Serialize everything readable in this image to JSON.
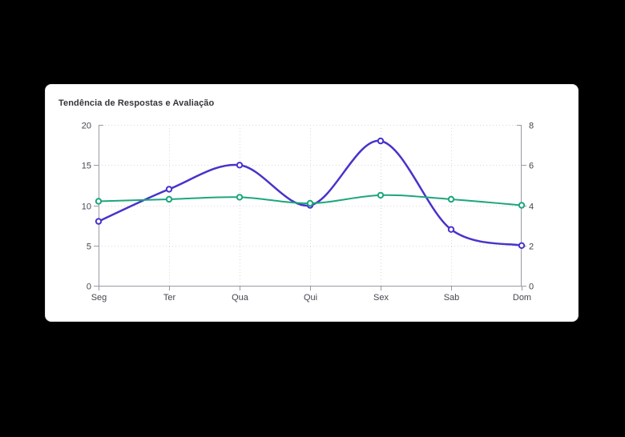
{
  "chart_data": {
    "type": "line",
    "title": "Tendência de Respostas e Avaliação",
    "categories": [
      "Seg",
      "Ter",
      "Qua",
      "Qui",
      "Sex",
      "Sab",
      "Dom"
    ],
    "series": [
      {
        "axis": "left",
        "color": "#4733cb",
        "values": [
          8,
          12,
          15,
          10,
          18,
          7,
          5
        ]
      },
      {
        "axis": "right",
        "color": "#1ea67d",
        "values": [
          4.2,
          4.3,
          4.4,
          4.1,
          4.5,
          4.3,
          4.0
        ]
      }
    ],
    "left_axis": {
      "min": 0,
      "max": 20,
      "ticks": [
        0,
        5,
        10,
        15,
        20
      ]
    },
    "right_axis": {
      "min": 0,
      "max": 8,
      "ticks": [
        0,
        2,
        4,
        6,
        8
      ]
    },
    "grid": "dotted",
    "legend": "none"
  },
  "colors": {
    "page_background": "#000000",
    "card_background": "#ffffff",
    "axis": "#9b99a3",
    "axis_label": "#47454f",
    "title": "#35333c"
  }
}
